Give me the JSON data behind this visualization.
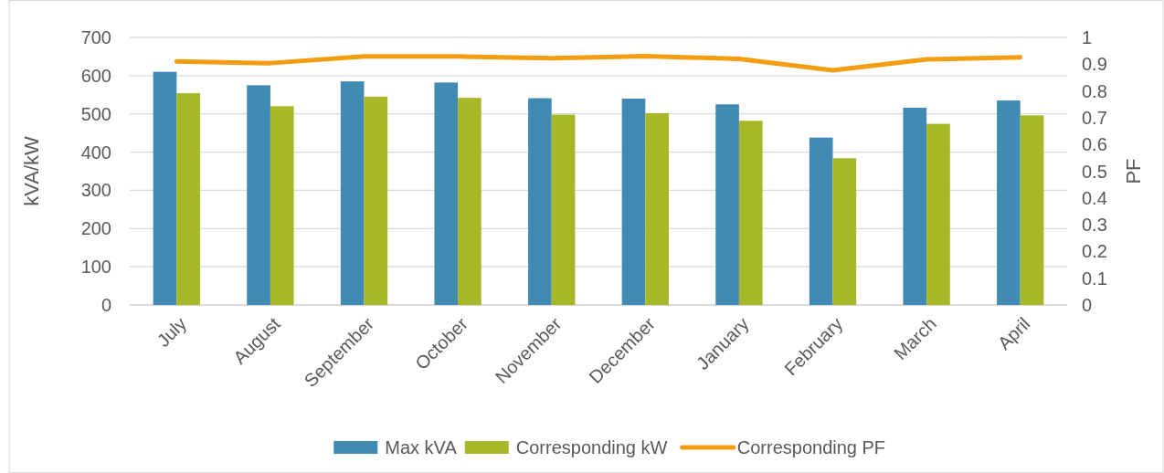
{
  "chart_data": {
    "type": "bar",
    "ylabel": "kVA/kW",
    "y2label": "PF",
    "categories": [
      "July",
      "August",
      "September",
      "October",
      "November",
      "December",
      "January",
      "February",
      "March",
      "April"
    ],
    "series": [
      {
        "name": "Max kVA",
        "color": "#418ab3",
        "values": [
          610,
          575,
          585,
          582,
          541,
          540,
          525,
          438,
          516,
          535
        ]
      },
      {
        "name": "Corresponding kW",
        "color": "#a6b727",
        "values": [
          554,
          520,
          545,
          542,
          498,
          502,
          482,
          384,
          474,
          496
        ]
      },
      {
        "name": "Corresponding PF",
        "type": "line",
        "axis": "y2",
        "color": "#f59d10",
        "values": [
          0.91,
          0.904,
          0.929,
          0.929,
          0.922,
          0.93,
          0.92,
          0.877,
          0.918,
          0.926
        ]
      }
    ],
    "ylim": [
      0,
      700
    ],
    "yticks": [
      0,
      100,
      200,
      300,
      400,
      500,
      600,
      700
    ],
    "y2lim": [
      0,
      1
    ],
    "y2ticks": [
      0,
      0.1,
      0.2,
      0.3,
      0.4,
      0.5,
      0.6,
      0.7,
      0.8,
      0.9,
      1
    ],
    "grid": "y",
    "legend": "bottom",
    "marker": "none",
    "line_style": "solid"
  }
}
